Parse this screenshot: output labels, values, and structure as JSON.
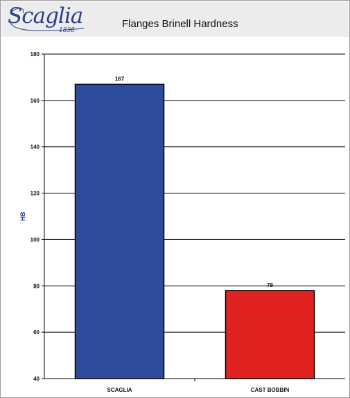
{
  "logo": {
    "wordmark": "Scaglia",
    "year": "1838"
  },
  "chart_data": {
    "type": "bar",
    "title": "Flanges Brinell Hardness",
    "xlabel": "",
    "ylabel": "HB",
    "categories": [
      "SCAGLIA",
      "CAST BOBBIN"
    ],
    "values": [
      167,
      78
    ],
    "data_labels": [
      "167",
      "78"
    ],
    "colors": [
      "#2f4b9c",
      "#e02321"
    ],
    "ylim": [
      40,
      180
    ],
    "yticks": [
      40,
      60,
      80,
      100,
      120,
      140,
      160,
      180
    ],
    "grid": "horizontal",
    "legend": "none"
  }
}
